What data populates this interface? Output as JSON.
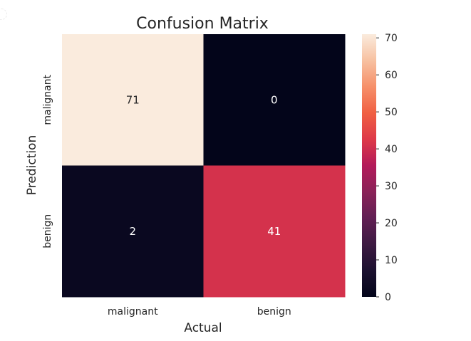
{
  "chart_data": {
    "type": "heatmap",
    "title": "Confusion Matrix",
    "xlabel": "Actual",
    "ylabel": "Prediction",
    "x_categories": [
      "malignant",
      "benign"
    ],
    "y_categories": [
      "malignant",
      "benign"
    ],
    "values": [
      [
        71,
        0
      ],
      [
        2,
        41
      ]
    ],
    "colorbar": {
      "min": 0,
      "max": 71,
      "ticks": [
        0,
        10,
        20,
        30,
        40,
        50,
        60,
        70
      ],
      "colormap": "rocket"
    },
    "annotation_colors": {
      "on_light": "#262626",
      "on_dark": "#ffffff"
    },
    "colors": {
      "colormap_stops": [
        "#03051a",
        "#1c1130",
        "#3d1a42",
        "#611f53",
        "#8a2258",
        "#b31b5a",
        "#de3948",
        "#f06043",
        "#f6906a",
        "#f7c1a1",
        "#faebdd"
      ]
    }
  }
}
